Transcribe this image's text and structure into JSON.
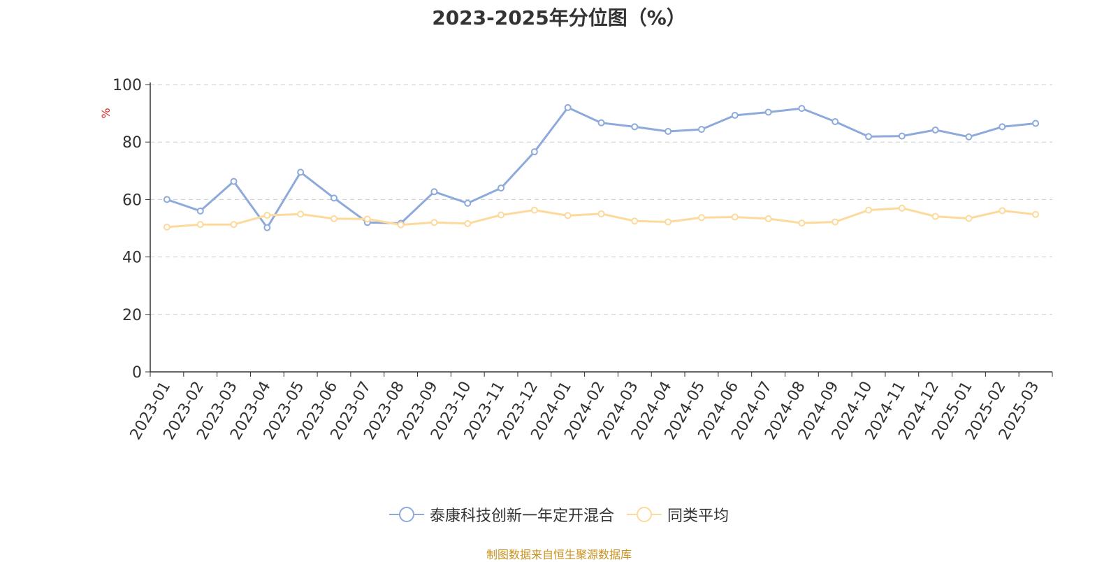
{
  "chart_data": {
    "type": "line",
    "title": "2023-2025年分位图（%）",
    "ylabel": "%",
    "ylim": [
      0,
      100
    ],
    "yticks": [
      "0",
      "20",
      "40",
      "60",
      "80",
      "100"
    ],
    "grid": true,
    "legend_position": "bottom",
    "categories": [
      "2023-01",
      "2023-02",
      "2023-03",
      "2023-04",
      "2023-05",
      "2023-06",
      "2023-07",
      "2023-08",
      "2023-09",
      "2023-10",
      "2023-11",
      "2023-12",
      "2024-01",
      "2024-02",
      "2024-03",
      "2024-04",
      "2024-05",
      "2024-06",
      "2024-07",
      "2024-08",
      "2024-09",
      "2024-10",
      "2024-11",
      "2024-12",
      "2025-01",
      "2025-02",
      "2025-03"
    ],
    "series": [
      {
        "name": "泰康科技创新一年定开混合",
        "color": "#8eaadb",
        "values": [
          60.0,
          56.0,
          66.3,
          50.2,
          69.5,
          60.5,
          52.0,
          51.7,
          62.7,
          58.7,
          64.0,
          76.6,
          92.0,
          86.7,
          85.3,
          83.7,
          84.4,
          89.3,
          90.4,
          91.7,
          87.1,
          81.9,
          82.1,
          84.2,
          81.8,
          85.3,
          86.5
        ]
      },
      {
        "name": "同类平均",
        "color": "#fdd99b",
        "values": [
          50.4,
          51.3,
          51.3,
          54.5,
          54.9,
          53.3,
          53.2,
          51.2,
          52.0,
          51.6,
          54.6,
          56.3,
          54.4,
          55.0,
          52.5,
          52.2,
          53.7,
          53.9,
          53.3,
          51.8,
          52.2,
          56.3,
          57.0,
          54.1,
          53.4,
          56.1,
          54.8
        ]
      }
    ]
  },
  "source_note": "制图数据来自恒生聚源数据库"
}
